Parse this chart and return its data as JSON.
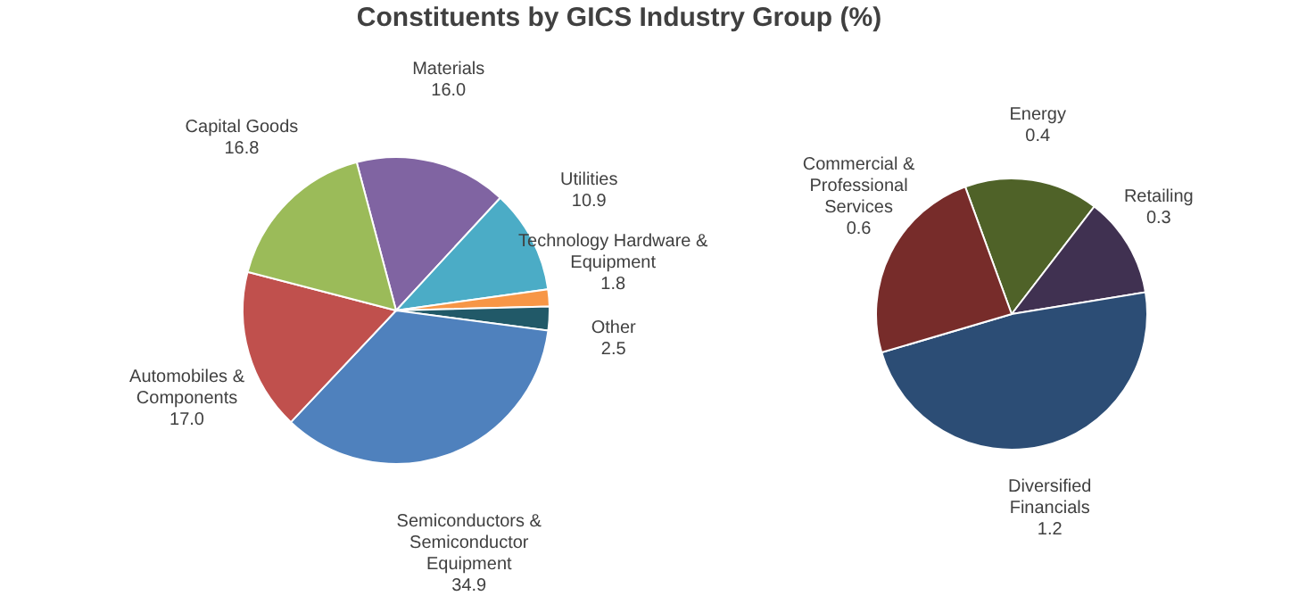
{
  "chart_data": [
    {
      "type": "pie",
      "title": "Constituents by GICS Industry Group (%)",
      "categories": [
        "Materials",
        "Utilities",
        "Technology Hardware & Equipment",
        "Other",
        "Semiconductors & Semiconductor Equipment",
        "Automobiles & Components",
        "Capital Goods"
      ],
      "values": [
        16.0,
        10.9,
        1.8,
        2.5,
        34.9,
        17.0,
        16.8
      ],
      "colors": [
        "#8064a2",
        "#4bacc6",
        "#f79646",
        "#215968",
        "#4f81bd",
        "#c0504d",
        "#9bbb59"
      ],
      "value_labels": [
        "16.0",
        "10.9",
        "1.8",
        "2.5",
        "34.9",
        "17.0",
        "16.8"
      ]
    },
    {
      "type": "pie",
      "categories": [
        "Energy",
        "Retailing",
        "Diversified Financials",
        "Commercial & Professional Services"
      ],
      "values": [
        0.4,
        0.3,
        1.2,
        0.6
      ],
      "colors": [
        "#4f6228",
        "#403151",
        "#2c4d75",
        "#772c2a"
      ],
      "value_labels": [
        "0.4",
        "0.3",
        "1.2",
        "0.6"
      ]
    }
  ]
}
